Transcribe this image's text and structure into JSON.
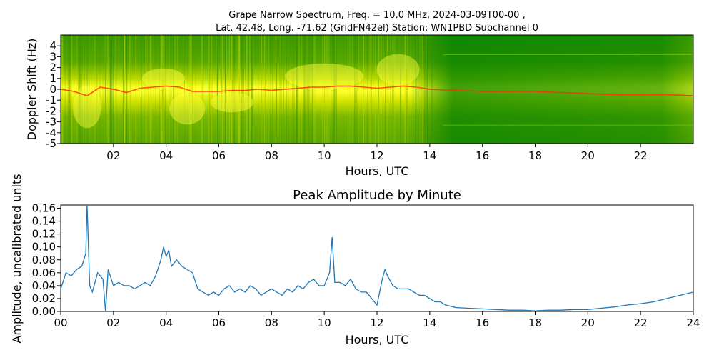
{
  "chart_data": [
    {
      "type": "heatmap",
      "title_lines": [
        "Grape Narrow Spectrum, Freq. = 10.0 MHz, 2024-03-09T00-00 ,",
        "Lat.  42.48, Long. -71.62 (GridFN42el) Station: WN1PBD Subchannel 0"
      ],
      "xlabel": "Hours, UTC",
      "ylabel": "Doppler Shift (Hz)",
      "xlim": [
        0,
        24
      ],
      "ylim": [
        -5,
        5
      ],
      "x_ticks": [
        "02",
        "04",
        "06",
        "08",
        "10",
        "12",
        "14",
        "16",
        "18",
        "20",
        "22"
      ],
      "y_ticks": [
        "4",
        "3",
        "2",
        "1",
        "0",
        "-1",
        "-2",
        "-3",
        "-4",
        "-5"
      ],
      "colormap": [
        "#008000",
        "#7fbf00",
        "#ffff00",
        "#ff8000",
        "#ff0000"
      ],
      "doppler_trace": {
        "x": [
          0.0,
          0.5,
          1.0,
          1.5,
          2.0,
          2.5,
          3.0,
          3.5,
          4.0,
          4.5,
          5.0,
          5.5,
          6.0,
          6.5,
          7.0,
          7.5,
          8.0,
          8.5,
          9.0,
          9.5,
          10.0,
          10.5,
          11.0,
          11.5,
          12.0,
          12.5,
          13.0,
          13.5,
          14.0,
          15.0,
          16.0,
          17.0,
          18.0,
          19.0,
          20.0,
          21.0,
          22.0,
          23.0,
          24.0
        ],
        "y": [
          0.0,
          -0.2,
          -0.6,
          0.2,
          0.0,
          -0.3,
          0.1,
          0.2,
          0.3,
          0.2,
          -0.2,
          -0.2,
          -0.2,
          -0.1,
          -0.1,
          0.0,
          -0.1,
          0.0,
          0.1,
          0.2,
          0.2,
          0.3,
          0.3,
          0.2,
          0.1,
          0.2,
          0.3,
          0.2,
          0.0,
          -0.1,
          -0.2,
          -0.2,
          -0.2,
          -0.3,
          -0.4,
          -0.5,
          -0.5,
          -0.5,
          -0.6
        ]
      }
    },
    {
      "type": "line",
      "title": "Peak Amplitude by Minute",
      "xlabel": "Hours, UTC",
      "ylabel": "Amplitude, uncalibrated units",
      "xlim": [
        0,
        24
      ],
      "ylim": [
        0,
        0.165
      ],
      "x_ticks": [
        "00",
        "02",
        "04",
        "06",
        "08",
        "10",
        "12",
        "14",
        "16",
        "18",
        "20",
        "22",
        "24"
      ],
      "y_ticks": [
        "0.00",
        "0.02",
        "0.04",
        "0.06",
        "0.08",
        "0.10",
        "0.12",
        "0.14",
        "0.16"
      ],
      "line_color": "#1f77b4",
      "series": [
        {
          "x": [
            0.0,
            0.2,
            0.4,
            0.6,
            0.8,
            0.95,
            1.0,
            1.05,
            1.1,
            1.2,
            1.4,
            1.6,
            1.7,
            1.8,
            2.0,
            2.2,
            2.4,
            2.6,
            2.8,
            3.0,
            3.2,
            3.4,
            3.6,
            3.8,
            3.9,
            4.0,
            4.1,
            4.2,
            4.4,
            4.6,
            4.8,
            5.0,
            5.2,
            5.4,
            5.6,
            5.8,
            6.0,
            6.2,
            6.4,
            6.6,
            6.8,
            7.0,
            7.2,
            7.4,
            7.6,
            7.8,
            8.0,
            8.2,
            8.4,
            8.6,
            8.8,
            9.0,
            9.2,
            9.4,
            9.6,
            9.8,
            10.0,
            10.2,
            10.3,
            10.4,
            10.6,
            10.8,
            11.0,
            11.2,
            11.4,
            11.6,
            11.8,
            12.0,
            12.2,
            12.3,
            12.4,
            12.6,
            12.8,
            13.0,
            13.2,
            13.4,
            13.6,
            13.8,
            14.0,
            14.2,
            14.4,
            14.6,
            14.8,
            15.0,
            15.5,
            16.0,
            16.5,
            17.0,
            17.5,
            18.0,
            18.5,
            19.0,
            19.5,
            20.0,
            20.5,
            21.0,
            21.5,
            22.0,
            22.5,
            23.0,
            23.5,
            24.0
          ],
          "y": [
            0.035,
            0.06,
            0.055,
            0.065,
            0.07,
            0.09,
            0.165,
            0.1,
            0.04,
            0.03,
            0.06,
            0.05,
            0.0,
            0.065,
            0.04,
            0.045,
            0.04,
            0.04,
            0.035,
            0.04,
            0.045,
            0.04,
            0.055,
            0.08,
            0.1,
            0.085,
            0.095,
            0.07,
            0.08,
            0.07,
            0.065,
            0.06,
            0.035,
            0.03,
            0.025,
            0.03,
            0.025,
            0.035,
            0.04,
            0.03,
            0.035,
            0.03,
            0.04,
            0.035,
            0.025,
            0.03,
            0.035,
            0.03,
            0.025,
            0.035,
            0.03,
            0.04,
            0.035,
            0.045,
            0.05,
            0.04,
            0.04,
            0.06,
            0.115,
            0.045,
            0.045,
            0.04,
            0.05,
            0.035,
            0.03,
            0.03,
            0.02,
            0.01,
            0.05,
            0.065,
            0.055,
            0.04,
            0.035,
            0.035,
            0.035,
            0.03,
            0.025,
            0.025,
            0.02,
            0.015,
            0.015,
            0.01,
            0.008,
            0.006,
            0.005,
            0.004,
            0.003,
            0.002,
            0.002,
            0.001,
            0.002,
            0.002,
            0.003,
            0.003,
            0.005,
            0.007,
            0.01,
            0.012,
            0.015,
            0.02,
            0.025,
            0.03
          ]
        }
      ]
    }
  ]
}
